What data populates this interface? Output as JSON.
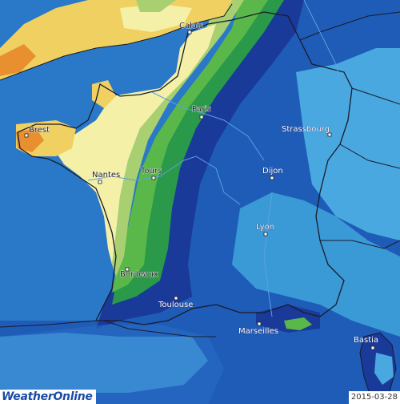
{
  "map": {
    "date": "2015-03-28",
    "brand": {
      "part1": "Weather",
      "part2": "Online"
    },
    "colors": {
      "deep_sea": "#2a6fc4",
      "mid_blue": "#1e5cb8",
      "dark_blue": "#1a3a9a",
      "light_blue": "#3a9ad6",
      "cyan_blue": "#4aa8e0",
      "dark_green": "#2a9a4a",
      "mid_green": "#5ab84a",
      "light_green": "#a8d070",
      "pale_yellow": "#f4f0a8",
      "yellow": "#f0d060",
      "orange": "#e89030",
      "border": "#1a1a2a",
      "river": "#5aa0e0"
    },
    "cities": [
      {
        "id": "calais",
        "name": "Calais"
      },
      {
        "id": "paris",
        "name": "Paris"
      },
      {
        "id": "brest",
        "name": "Brest"
      },
      {
        "id": "strassbourg",
        "name": "Strassbourg"
      },
      {
        "id": "nantes",
        "name": "Nantes"
      },
      {
        "id": "tours",
        "name": "Tours"
      },
      {
        "id": "dijon",
        "name": "Dijon"
      },
      {
        "id": "lyon",
        "name": "Lyon"
      },
      {
        "id": "bordeaux",
        "name": "Bordeaux"
      },
      {
        "id": "toulouse",
        "name": "Toulouse"
      },
      {
        "id": "marseilles",
        "name": "Marseilles"
      },
      {
        "id": "bastia",
        "name": "Bastia"
      }
    ]
  }
}
